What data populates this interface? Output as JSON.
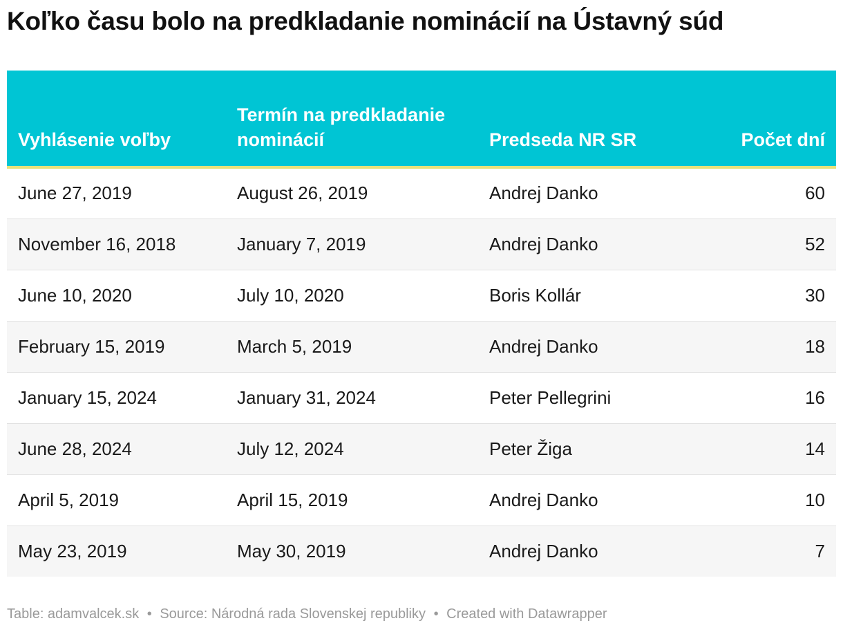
{
  "title": "Koľko času bolo na predkladanie nominácií na Ústavný súd",
  "colors": {
    "header_bg": "#00c5d4",
    "header_text": "#ffffff",
    "header_underline": "#e8e27a",
    "stripe": "#f6f6f6"
  },
  "chart_data": {
    "type": "table",
    "columns": [
      "Vyhlásenie voľby",
      "Termín na predkladanie nominácií",
      "Predseda NR SR",
      "Počet dní"
    ],
    "rows": [
      [
        "June 27, 2019",
        "August 26, 2019",
        "Andrej Danko",
        "60"
      ],
      [
        "November 16, 2018",
        "January 7, 2019",
        "Andrej Danko",
        "52"
      ],
      [
        "June 10, 2020",
        "July 10, 2020",
        "Boris Kollár",
        "30"
      ],
      [
        "February 15, 2019",
        "March 5, 2019",
        "Andrej Danko",
        "18"
      ],
      [
        "January 15, 2024",
        "January 31, 2024",
        "Peter Pellegrini",
        "16"
      ],
      [
        "June 28, 2024",
        "July 12, 2024",
        "Peter Žiga",
        "14"
      ],
      [
        "April 5, 2019",
        "April 15, 2019",
        "Andrej Danko",
        "10"
      ],
      [
        "May 23, 2019",
        "May 30, 2019",
        "Andrej Danko",
        "7"
      ]
    ]
  },
  "footer": {
    "table_credit": "Table: adamvalcek.sk",
    "source": "Source: Národná rada Slovenskej republiky",
    "created_with": "Created with Datawrapper",
    "separator": "•"
  }
}
